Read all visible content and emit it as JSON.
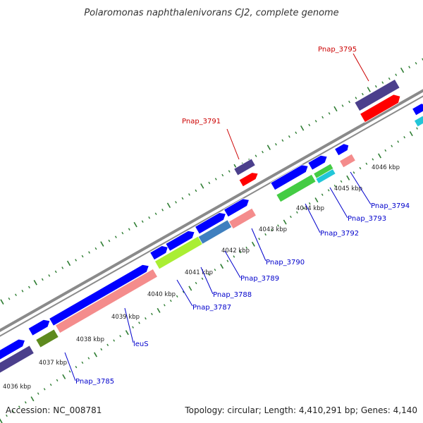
{
  "header": {
    "title": "Polaromonas naphthalenivorans CJ2, complete genome"
  },
  "footer": {
    "accession": "Accession: NC_008781",
    "summary": "Topology: circular; Length: 4,410,291 bp; Genes: 4,140"
  },
  "colors": {
    "backbone": "#8a8a8a",
    "tick": "#2e7d32",
    "label_blue": "#0000cc",
    "label_red": "#cc0000",
    "connector_blue": "#0000cc",
    "connector_red": "#cc0000"
  },
  "ticks": [
    "4036 kbp",
    "4037 kbp",
    "4038 kbp",
    "4039 kbp",
    "4040 kbp",
    "4041 kbp",
    "4042 kbp",
    "4043 kbp",
    "4044 kbp",
    "4045 kbp",
    "4046 kbp"
  ],
  "labels": [
    {
      "text": "Pnap_3785",
      "color": "blue"
    },
    {
      "text": "leuS",
      "color": "blue"
    },
    {
      "text": "Pnap_3787",
      "color": "blue"
    },
    {
      "text": "Pnap_3788",
      "color": "blue"
    },
    {
      "text": "Pnap_3789",
      "color": "blue"
    },
    {
      "text": "Pnap_3790",
      "color": "blue"
    },
    {
      "text": "Pnap_3792",
      "color": "blue"
    },
    {
      "text": "Pnap_3793",
      "color": "blue"
    },
    {
      "text": "Pnap_3794",
      "color": "blue"
    },
    {
      "text": "Pnap_3791",
      "color": "red"
    },
    {
      "text": "Pnap_3795",
      "color": "red"
    }
  ],
  "gene_colors": {
    "cds": "#0000ff",
    "navy": "#4b3f8c",
    "red": "#ff0000",
    "pink": "#f48c8c",
    "green": "#44cc44",
    "lime": "#aaee33",
    "olive": "#5e8a1e",
    "steel": "#3f7fbf",
    "cyan": "#22c6d8"
  }
}
